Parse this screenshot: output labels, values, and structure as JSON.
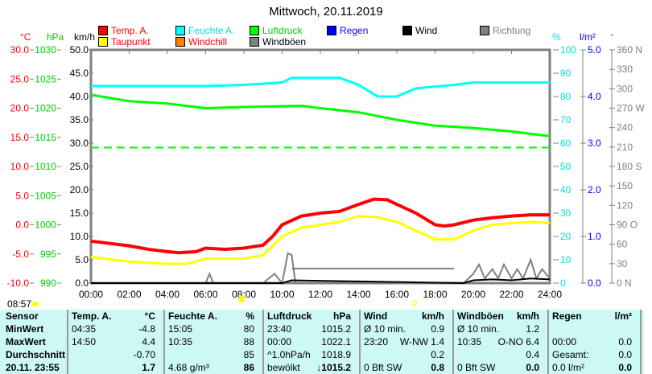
{
  "title": "Mittwoch, 20.11.2019",
  "legend": [
    {
      "label": "Temp. A.",
      "color": "#ff0000"
    },
    {
      "label": "Feuchte A.",
      "color": "#00ffff"
    },
    {
      "label": "Luftdruck",
      "color": "#00ff00"
    },
    {
      "label": "Regen",
      "color": "#0000ff"
    },
    {
      "label": "Wind",
      "color": "#000000"
    },
    {
      "label": "Richtung",
      "color": "#808080"
    },
    {
      "label": "Taupunkt",
      "color": "#ffff00",
      "text": "#ff0000"
    },
    {
      "label": "Windchill",
      "color": "#ff8000",
      "text": "#ff0000"
    },
    {
      "label": "Windböen",
      "color": "#808080",
      "text": "#000000"
    }
  ],
  "axis_units": {
    "c": "°C",
    "hpa": "hPa",
    "kmh": "km/h",
    "pct": "%",
    "lm2": "l/m²",
    "deg": "°"
  },
  "sunrise": "08:57",
  "chart_data": {
    "type": "line",
    "x_ticks": [
      "00:00",
      "02:00",
      "04:00",
      "06:00",
      "08:00",
      "10:00",
      "12:00",
      "14:00",
      "16:00",
      "18:00",
      "20:00",
      "22:00",
      "24:00"
    ],
    "axes": {
      "c": {
        "ticks": [
          "30.0",
          "25.0",
          "20.0",
          "15.0",
          "10.0",
          "5.0",
          "0.0",
          "-5.0",
          "-10.0"
        ],
        "range": [
          -10,
          30
        ]
      },
      "hpa": {
        "ticks": [
          "1030",
          "1025",
          "1020",
          "1015",
          "1010",
          "1005",
          "1000",
          "995",
          "990"
        ],
        "range": [
          990,
          1030
        ]
      },
      "kmh": {
        "ticks": [
          "50.0",
          "45.0",
          "40.0",
          "35.0",
          "30.0",
          "25.0",
          "20.0",
          "15.0",
          "10.0",
          "5.0",
          "0.0"
        ],
        "range": [
          0,
          50
        ]
      },
      "pct": {
        "ticks": [
          "100",
          "90",
          "80",
          "70",
          "60",
          "50",
          "40",
          "30",
          "20",
          "10",
          "0"
        ],
        "range": [
          0,
          100
        ]
      },
      "lm2": {
        "ticks": [
          "5.0",
          "4.0",
          "3.0",
          "2.0",
          "1.0",
          "0.0"
        ],
        "range": [
          0,
          5
        ]
      },
      "deg": {
        "ticks": [
          "360 N",
          "330",
          "300",
          "270 W",
          "240",
          "210",
          "180 S",
          "150",
          "120",
          "90  O",
          "60",
          "30",
          "0   N"
        ],
        "range": [
          0,
          360
        ]
      }
    },
    "series": [
      {
        "name": "Temp. A.",
        "axis": "c",
        "color": "#ff0000",
        "width": 4,
        "x": [
          0,
          1,
          2,
          3,
          4,
          4.6,
          5.5,
          6,
          7,
          8,
          9,
          9.5,
          10,
          11,
          12,
          13,
          14,
          14.8,
          15.5,
          16,
          17,
          18,
          18.5,
          19,
          20,
          21,
          22,
          23,
          24
        ],
        "y": [
          -2.8,
          -3.2,
          -3.6,
          -4.2,
          -4.6,
          -4.8,
          -4.6,
          -4,
          -4.2,
          -4,
          -3.5,
          -2,
          0,
          1.5,
          2,
          2.3,
          3.5,
          4.4,
          4.3,
          3.5,
          2,
          0,
          -0.2,
          0,
          0.8,
          1.2,
          1.5,
          1.7,
          1.7
        ]
      },
      {
        "name": "Taupunkt",
        "axis": "c",
        "color": "#ffff00",
        "width": 3,
        "x": [
          0,
          2,
          4,
          5,
          6,
          8,
          9,
          10,
          11,
          12,
          13,
          14,
          15,
          16,
          17,
          18,
          19,
          20,
          21,
          22,
          23,
          24
        ],
        "y": [
          -5.5,
          -6.3,
          -6.7,
          -6.7,
          -5.8,
          -5.8,
          -5.2,
          -2,
          -0.5,
          0,
          0.5,
          1.5,
          1.3,
          0.5,
          -1,
          -2.5,
          -2.5,
          -1,
          0,
          0.3,
          0.5,
          0.3
        ]
      },
      {
        "name": "Feuchte A.",
        "axis": "pct",
        "color": "#00ffff",
        "width": 3,
        "x": [
          0,
          6,
          8,
          10,
          10.5,
          13,
          14,
          15,
          16,
          17,
          19,
          20,
          24
        ],
        "y": [
          84.5,
          84.5,
          85,
          86,
          88,
          88,
          85,
          80,
          80,
          83.5,
          85,
          86,
          86
        ]
      },
      {
        "name": "Luftdruck",
        "axis": "hpa",
        "color": "#00ff00",
        "width": 3,
        "x": [
          0,
          2,
          4,
          6,
          8,
          11,
          12,
          14,
          16,
          18,
          20,
          22,
          24
        ],
        "y": [
          1022.3,
          1021.2,
          1020.8,
          1020,
          1020.2,
          1020.4,
          1020,
          1019.3,
          1018,
          1017,
          1016.6,
          1016,
          1015.2
        ]
      },
      {
        "name": "Windböen",
        "axis": "kmh",
        "color": "#808080",
        "width": 2,
        "x": [
          0,
          6,
          6.2,
          6.4,
          9,
          9.6,
          10,
          10.3,
          10.5,
          10.7,
          19.5,
          20,
          20.3,
          20.6,
          21,
          21.3,
          21.6,
          22,
          22.3,
          22.6,
          23,
          23.3,
          23.6,
          24
        ],
        "y": [
          0,
          0,
          2,
          0,
          0,
          2,
          0,
          6.4,
          6,
          0,
          0,
          2,
          4,
          1,
          3,
          1,
          4,
          1,
          3,
          1,
          5,
          1,
          3,
          1
        ]
      },
      {
        "name": "Wind",
        "axis": "kmh",
        "color": "#000000",
        "width": 2,
        "x": [
          0,
          10,
          10.5,
          19.5,
          20,
          21,
          22,
          23,
          24
        ],
        "y": [
          0,
          0,
          0.6,
          0,
          0.6,
          0.8,
          0.6,
          1.0,
          0.8
        ]
      }
    ],
    "reference_lines": [
      {
        "axis": "hpa",
        "value": 1013.25,
        "color": "#00ff00",
        "dashed": true
      },
      {
        "axis": "c",
        "value": -7.5,
        "from": 10.5,
        "to": 19,
        "color": "#808080"
      }
    ]
  },
  "table": {
    "sensor": {
      "head": "Sensor",
      "rows": [
        "MinWert",
        "MaxWert",
        "Durchschnitt",
        "20.11. 23:55"
      ]
    },
    "cols": [
      {
        "head": "Temp. A.",
        "unit": "°C",
        "rows": [
          [
            "04:35",
            "-4.8"
          ],
          [
            "14:50",
            "4.4"
          ],
          [
            "",
            "-0.70"
          ],
          [
            "",
            "1.7"
          ]
        ]
      },
      {
        "head": "Feuchte A.",
        "unit": "%",
        "rows": [
          [
            "15:05",
            "80"
          ],
          [
            "10:35",
            "88"
          ],
          [
            "",
            "85"
          ],
          [
            "4.68 g/m³",
            "86"
          ]
        ]
      },
      {
        "head": "Luftdruck",
        "unit": "hPa",
        "rows": [
          [
            "23:40",
            "1015.2"
          ],
          [
            "00:00",
            "1022.1"
          ],
          [
            "^1.0hPa/h",
            "1018.9"
          ],
          [
            "bewölkt",
            "↓1015.2"
          ]
        ]
      },
      {
        "head": "Wind",
        "unit": "km/h",
        "rows": [
          [
            "Ø 10 min.",
            "0.9"
          ],
          [
            "23:20",
            "W-NW 1.4"
          ],
          [
            "",
            "0.2"
          ],
          [
            "0 Bft SW",
            "0.8"
          ]
        ]
      },
      {
        "head": "Windböen",
        "unit": "km/h",
        "rows": [
          [
            "Ø 10 min.",
            "1.2"
          ],
          [
            "10:35",
            "O-NO 6.4"
          ],
          [
            "",
            "0.4"
          ],
          [
            "0 Bft SW",
            "0.0"
          ]
        ]
      },
      {
        "head": "Regen",
        "unit": "l/m²",
        "rows": [
          [
            "",
            ""
          ],
          [
            "00:00",
            "0.0"
          ],
          [
            "Gesamt:",
            "0.0"
          ],
          [
            "0.0 l/m²",
            "0.0"
          ]
        ]
      }
    ]
  }
}
